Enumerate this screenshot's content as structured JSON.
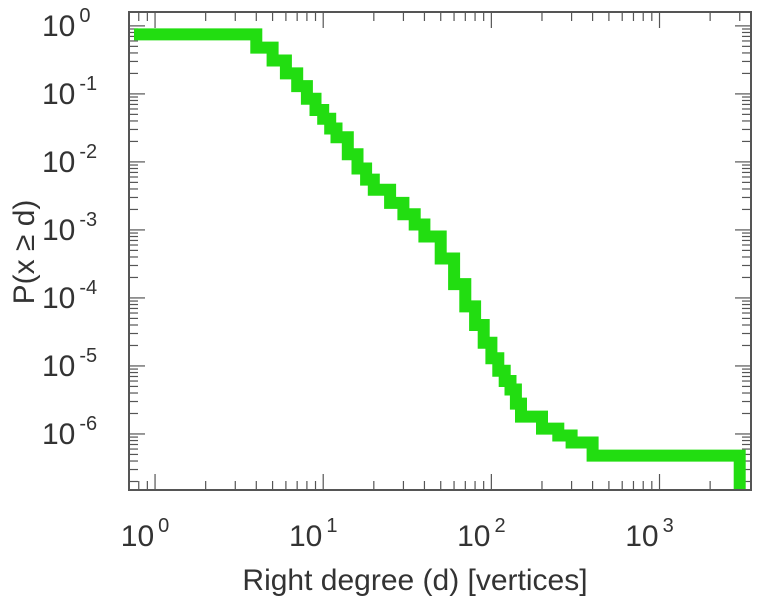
{
  "chart_data": {
    "type": "line",
    "title": "",
    "xlabel": "Right degree (d) [vertices]",
    "ylabel": "P(x ≥ d)",
    "x_scale": "log",
    "y_scale": "log",
    "xlim": [
      0.7,
      3500
    ],
    "ylim": [
      1.5e-07,
      1.6
    ],
    "x_ticks": [
      {
        "value": 1,
        "base": "10",
        "exp": "0"
      },
      {
        "value": 10,
        "base": "10",
        "exp": "1"
      },
      {
        "value": 100,
        "base": "10",
        "exp": "2"
      },
      {
        "value": 1000,
        "base": "10",
        "exp": "3"
      }
    ],
    "y_ticks": [
      {
        "value": 1,
        "base": "10",
        "exp": "0"
      },
      {
        "value": 0.1,
        "base": "10",
        "exp": "-1"
      },
      {
        "value": 0.01,
        "base": "10",
        "exp": "-2"
      },
      {
        "value": 0.001,
        "base": "10",
        "exp": "-3"
      },
      {
        "value": 0.0001,
        "base": "10",
        "exp": "-4"
      },
      {
        "value": 1e-05,
        "base": "10",
        "exp": "-5"
      },
      {
        "value": 1e-06,
        "base": "10",
        "exp": "-6"
      }
    ],
    "grid": false,
    "legend": "none",
    "series_color": "#22dd11",
    "series": [
      {
        "name": "",
        "x": [
          0.75,
          3,
          4,
          5,
          6,
          7,
          8,
          9,
          10,
          11,
          12,
          14,
          16,
          18,
          20,
          25,
          30,
          35,
          40,
          50,
          60,
          70,
          80,
          90,
          100,
          110,
          120,
          130,
          140,
          150,
          200,
          250,
          300,
          400,
          3000,
          3000
        ],
        "y": [
          0.75,
          0.75,
          0.48,
          0.31,
          0.2,
          0.13,
          0.085,
          0.058,
          0.043,
          0.031,
          0.023,
          0.013,
          0.008,
          0.0055,
          0.0039,
          0.0025,
          0.0017,
          0.0012,
          0.0008,
          0.00038,
          0.00016,
          7.5e-05,
          4e-05,
          2.2e-05,
          1.3e-05,
          8.5e-06,
          6e-06,
          4.5e-06,
          2.8e-06,
          1.8e-06,
          1.2e-06,
          9.5e-07,
          7.5e-07,
          4.8e-07,
          4.8e-07,
          1.5e-07
        ]
      }
    ]
  }
}
